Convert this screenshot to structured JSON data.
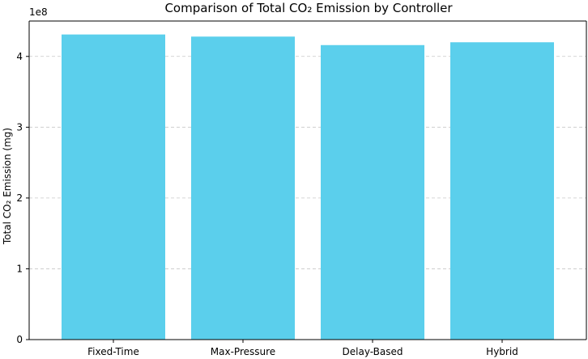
{
  "chart_data": {
    "type": "bar",
    "title": "Comparison of Total CO₂ Emission by Controller",
    "xlabel": "",
    "ylabel": "Total CO₂ Emission (mg)",
    "y_offset_label": "1e8",
    "categories": [
      "Fixed-Time",
      "Max-Pressure",
      "Delay-Based",
      "Hybrid"
    ],
    "values": [
      431000000,
      428000000,
      416000000,
      420000000
    ],
    "ylim": [
      0,
      450000000
    ],
    "yticks": [
      0,
      100000000,
      200000000,
      300000000,
      400000000
    ],
    "ytick_labels": [
      "0",
      "1",
      "2",
      "3",
      "4"
    ],
    "grid": "y-dashed",
    "bar_color": "#5bcfec"
  }
}
